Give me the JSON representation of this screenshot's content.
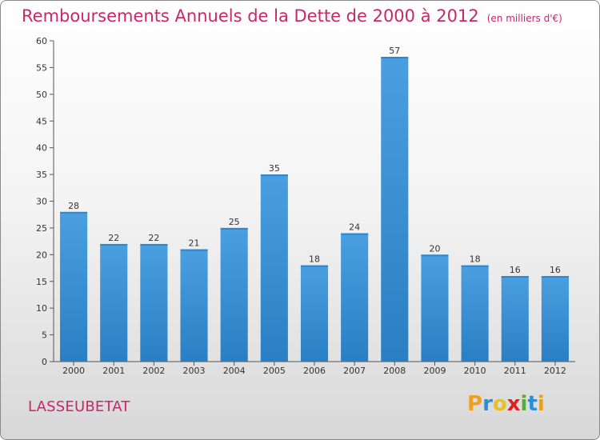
{
  "title": "Remboursements Annuels de la Dette de 2000 à 2012",
  "subtitle": "(en milliers d'€)",
  "commune": "LASSEUBETAT",
  "logo": {
    "text": "Proxiti",
    "letters": [
      "P",
      "r",
      "o",
      "x",
      "i",
      "t",
      "i"
    ],
    "colors": [
      "#f0a020",
      "#2a8fd8",
      "#e8c020",
      "#e02020",
      "#50b030",
      "#2a8fd8",
      "#e8a020"
    ]
  },
  "colors": {
    "bar": "#4a9fe0",
    "bar_dark": "#2a7fc4",
    "title": "#c8276a"
  },
  "chart_data": {
    "type": "bar",
    "title": "Remboursements Annuels de la Dette de 2000 à 2012",
    "subtitle": "(en milliers d'€)",
    "xlabel": "",
    "ylabel": "",
    "categories": [
      "2000",
      "2001",
      "2002",
      "2003",
      "2004",
      "2005",
      "2006",
      "2007",
      "2008",
      "2009",
      "2010",
      "2011",
      "2012"
    ],
    "values": [
      28,
      22,
      22,
      21,
      25,
      35,
      18,
      24,
      57,
      20,
      18,
      16,
      16
    ],
    "ylim": [
      0,
      60
    ],
    "yticks": [
      0,
      5,
      10,
      15,
      20,
      25,
      30,
      35,
      40,
      45,
      50,
      55,
      60
    ],
    "grid": false,
    "legend": "none"
  }
}
